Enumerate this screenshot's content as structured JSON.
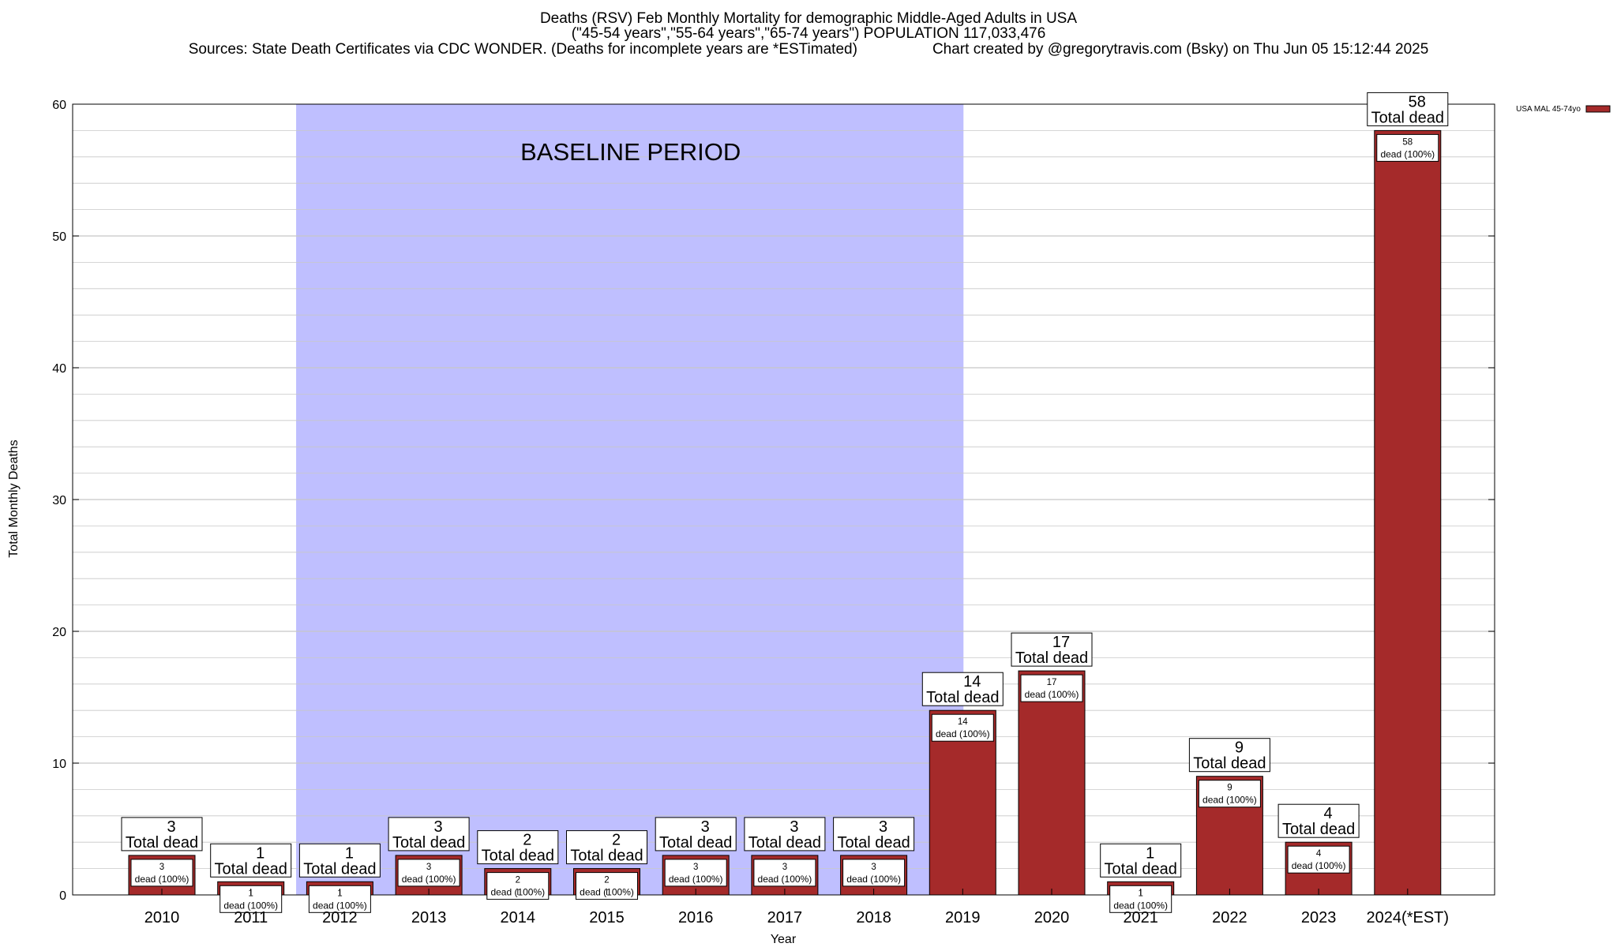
{
  "titles": {
    "line1": "Deaths (RSV) Feb Monthly Mortality for demographic Middle-Aged Adults in USA",
    "line2": "(\"45-54 years\",\"55-64 years\",\"65-74 years\") POPULATION 117,033,476",
    "sources": "Sources: State Death Certificates via CDC WONDER. (Deaths for incomplete years are *ESTimated)",
    "credit": "Chart created by @gregorytravis.com (Bsky) on Thu Jun 05 15:12:44 2025"
  },
  "colors": {
    "bar": "#a52a2a",
    "baseline_band": "#bfbfff",
    "grid": "#c8c8c8"
  },
  "chart_data": {
    "type": "bar",
    "xlabel": "Year",
    "ylabel": "Total Monthly Deaths",
    "ylim": [
      0,
      60
    ],
    "yticks": [
      0,
      10,
      20,
      30,
      40,
      50,
      60
    ],
    "grid": true,
    "legend": {
      "position": "top-right",
      "entries": [
        "USA MAL 45-74yo"
      ]
    },
    "categories": [
      "2010",
      "2011",
      "2012",
      "2013",
      "2014",
      "2015",
      "2016",
      "2017",
      "2018",
      "2019",
      "2020",
      "2021",
      "2022",
      "2023",
      "2024(*EST)"
    ],
    "series": [
      {
        "name": "USA MAL 45-74yo",
        "values": [
          3,
          1,
          1,
          3,
          2,
          2,
          3,
          3,
          3,
          14,
          17,
          1,
          9,
          4,
          58
        ]
      }
    ],
    "top_label_suffix": "Total dead",
    "inner_label_suffix": "dead (100%)",
    "baseline_band": {
      "label": "BASELINE PERIOD",
      "from": "2012",
      "to": "2019"
    }
  }
}
